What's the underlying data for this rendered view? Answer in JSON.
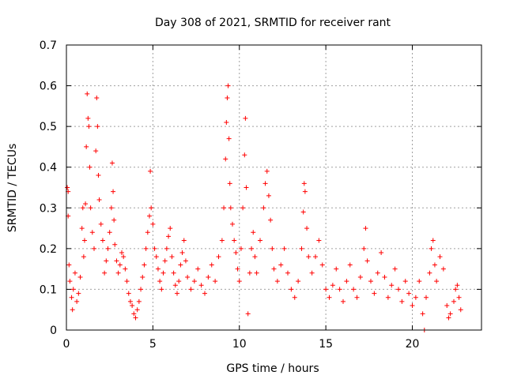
{
  "chart_data": {
    "type": "scatter",
    "title": "Day 308 of 2021, SRMTID for receiver rant",
    "xlabel": "GPS time / hours",
    "ylabel": "SRMTID / TECUs",
    "xlim": [
      0,
      24
    ],
    "ylim": [
      0,
      0.7
    ],
    "xticks": [
      0,
      5,
      10,
      15,
      20
    ],
    "xtick_labels": [
      "0",
      "5",
      "10",
      "15",
      "20"
    ],
    "yticks": [
      0,
      0.1,
      0.2,
      0.3,
      0.4,
      0.5,
      0.6,
      0.7
    ],
    "ytick_labels": [
      "0",
      "0.1",
      "0.2",
      "0.3",
      "0.4",
      "0.5",
      "0.6",
      "0.7"
    ],
    "grid": true,
    "marker": "plus",
    "color": "#ff0000",
    "series": [
      {
        "name": "SRMTID",
        "points": [
          [
            0.05,
            0.35
          ],
          [
            0.1,
            0.34
          ],
          [
            0.1,
            0.28
          ],
          [
            0.15,
            0.16
          ],
          [
            0.2,
            0.12
          ],
          [
            0.3,
            0.08
          ],
          [
            0.35,
            0.05
          ],
          [
            0.4,
            0.1
          ],
          [
            0.5,
            0.14
          ],
          [
            0.6,
            0.07
          ],
          [
            0.7,
            0.09
          ],
          [
            0.8,
            0.13
          ],
          [
            0.9,
            0.25
          ],
          [
            0.95,
            0.3
          ],
          [
            1.0,
            0.18
          ],
          [
            1.05,
            0.22
          ],
          [
            1.1,
            0.31
          ],
          [
            1.15,
            0.45
          ],
          [
            1.2,
            0.58
          ],
          [
            1.25,
            0.52
          ],
          [
            1.3,
            0.5
          ],
          [
            1.35,
            0.4
          ],
          [
            1.4,
            0.3
          ],
          [
            1.5,
            0.24
          ],
          [
            1.6,
            0.2
          ],
          [
            1.7,
            0.44
          ],
          [
            1.75,
            0.57
          ],
          [
            1.8,
            0.5
          ],
          [
            1.85,
            0.38
          ],
          [
            1.9,
            0.32
          ],
          [
            2.0,
            0.26
          ],
          [
            2.1,
            0.22
          ],
          [
            2.2,
            0.14
          ],
          [
            2.3,
            0.17
          ],
          [
            2.4,
            0.2
          ],
          [
            2.5,
            0.24
          ],
          [
            2.6,
            0.3
          ],
          [
            2.65,
            0.41
          ],
          [
            2.7,
            0.34
          ],
          [
            2.75,
            0.27
          ],
          [
            2.8,
            0.21
          ],
          [
            2.9,
            0.17
          ],
          [
            3.0,
            0.14
          ],
          [
            3.1,
            0.16
          ],
          [
            3.2,
            0.19
          ],
          [
            3.3,
            0.18
          ],
          [
            3.4,
            0.15
          ],
          [
            3.5,
            0.12
          ],
          [
            3.6,
            0.09
          ],
          [
            3.7,
            0.07
          ],
          [
            3.8,
            0.06
          ],
          [
            3.9,
            0.04
          ],
          [
            4.0,
            0.03
          ],
          [
            4.1,
            0.05
          ],
          [
            4.2,
            0.07
          ],
          [
            4.3,
            0.1
          ],
          [
            4.4,
            0.13
          ],
          [
            4.5,
            0.16
          ],
          [
            4.6,
            0.2
          ],
          [
            4.7,
            0.24
          ],
          [
            4.8,
            0.28
          ],
          [
            4.85,
            0.39
          ],
          [
            4.9,
            0.3
          ],
          [
            5.0,
            0.26
          ],
          [
            5.1,
            0.2
          ],
          [
            5.2,
            0.18
          ],
          [
            5.3,
            0.15
          ],
          [
            5.4,
            0.12
          ],
          [
            5.5,
            0.1
          ],
          [
            5.6,
            0.14
          ],
          [
            5.7,
            0.17
          ],
          [
            5.8,
            0.2
          ],
          [
            5.9,
            0.23
          ],
          [
            6.0,
            0.25
          ],
          [
            6.1,
            0.18
          ],
          [
            6.2,
            0.14
          ],
          [
            6.3,
            0.11
          ],
          [
            6.4,
            0.09
          ],
          [
            6.5,
            0.12
          ],
          [
            6.6,
            0.16
          ],
          [
            6.7,
            0.19
          ],
          [
            6.8,
            0.22
          ],
          [
            6.9,
            0.17
          ],
          [
            7.0,
            0.13
          ],
          [
            7.2,
            0.1
          ],
          [
            7.4,
            0.12
          ],
          [
            7.6,
            0.15
          ],
          [
            7.8,
            0.11
          ],
          [
            8.0,
            0.09
          ],
          [
            8.2,
            0.13
          ],
          [
            8.4,
            0.16
          ],
          [
            8.6,
            0.12
          ],
          [
            8.8,
            0.18
          ],
          [
            9.0,
            0.22
          ],
          [
            9.1,
            0.3
          ],
          [
            9.2,
            0.42
          ],
          [
            9.25,
            0.51
          ],
          [
            9.3,
            0.57
          ],
          [
            9.35,
            0.6
          ],
          [
            9.4,
            0.47
          ],
          [
            9.45,
            0.36
          ],
          [
            9.5,
            0.3
          ],
          [
            9.6,
            0.26
          ],
          [
            9.7,
            0.22
          ],
          [
            9.8,
            0.19
          ],
          [
            9.9,
            0.15
          ],
          [
            10.0,
            0.12
          ],
          [
            10.1,
            0.2
          ],
          [
            10.2,
            0.3
          ],
          [
            10.3,
            0.43
          ],
          [
            10.35,
            0.52
          ],
          [
            10.4,
            0.35
          ],
          [
            10.5,
            0.04
          ],
          [
            10.6,
            0.14
          ],
          [
            10.7,
            0.2
          ],
          [
            10.8,
            0.24
          ],
          [
            10.9,
            0.18
          ],
          [
            11.0,
            0.14
          ],
          [
            11.2,
            0.22
          ],
          [
            11.4,
            0.3
          ],
          [
            11.5,
            0.36
          ],
          [
            11.6,
            0.39
          ],
          [
            11.7,
            0.33
          ],
          [
            11.8,
            0.27
          ],
          [
            11.9,
            0.2
          ],
          [
            12.0,
            0.15
          ],
          [
            12.2,
            0.12
          ],
          [
            12.4,
            0.16
          ],
          [
            12.6,
            0.2
          ],
          [
            12.8,
            0.14
          ],
          [
            13.0,
            0.1
          ],
          [
            13.2,
            0.08
          ],
          [
            13.4,
            0.12
          ],
          [
            13.6,
            0.2
          ],
          [
            13.7,
            0.29
          ],
          [
            13.75,
            0.36
          ],
          [
            13.8,
            0.34
          ],
          [
            13.9,
            0.25
          ],
          [
            14.0,
            0.18
          ],
          [
            14.2,
            0.14
          ],
          [
            14.4,
            0.18
          ],
          [
            14.6,
            0.22
          ],
          [
            14.8,
            0.16
          ],
          [
            15.0,
            0.1
          ],
          [
            15.2,
            0.08
          ],
          [
            15.4,
            0.11
          ],
          [
            15.6,
            0.15
          ],
          [
            15.8,
            0.1
          ],
          [
            16.0,
            0.07
          ],
          [
            16.2,
            0.12
          ],
          [
            16.4,
            0.16
          ],
          [
            16.6,
            0.1
          ],
          [
            16.8,
            0.08
          ],
          [
            17.0,
            0.13
          ],
          [
            17.2,
            0.2
          ],
          [
            17.3,
            0.25
          ],
          [
            17.4,
            0.17
          ],
          [
            17.6,
            0.12
          ],
          [
            17.8,
            0.09
          ],
          [
            18.0,
            0.14
          ],
          [
            18.2,
            0.19
          ],
          [
            18.4,
            0.13
          ],
          [
            18.6,
            0.08
          ],
          [
            18.8,
            0.11
          ],
          [
            19.0,
            0.15
          ],
          [
            19.2,
            0.1
          ],
          [
            19.4,
            0.07
          ],
          [
            19.6,
            0.12
          ],
          [
            19.8,
            0.09
          ],
          [
            20.0,
            0.06
          ],
          [
            20.2,
            0.08
          ],
          [
            20.4,
            0.12
          ],
          [
            20.6,
            0.04
          ],
          [
            20.7,
            0.0
          ],
          [
            20.8,
            0.08
          ],
          [
            21.0,
            0.14
          ],
          [
            21.1,
            0.2
          ],
          [
            21.2,
            0.22
          ],
          [
            21.3,
            0.16
          ],
          [
            21.4,
            0.12
          ],
          [
            21.6,
            0.18
          ],
          [
            21.8,
            0.15
          ],
          [
            22.0,
            0.06
          ],
          [
            22.1,
            0.03
          ],
          [
            22.2,
            0.04
          ],
          [
            22.4,
            0.07
          ],
          [
            22.5,
            0.1
          ],
          [
            22.6,
            0.11
          ],
          [
            22.7,
            0.08
          ],
          [
            22.8,
            0.05
          ]
        ]
      }
    ]
  }
}
